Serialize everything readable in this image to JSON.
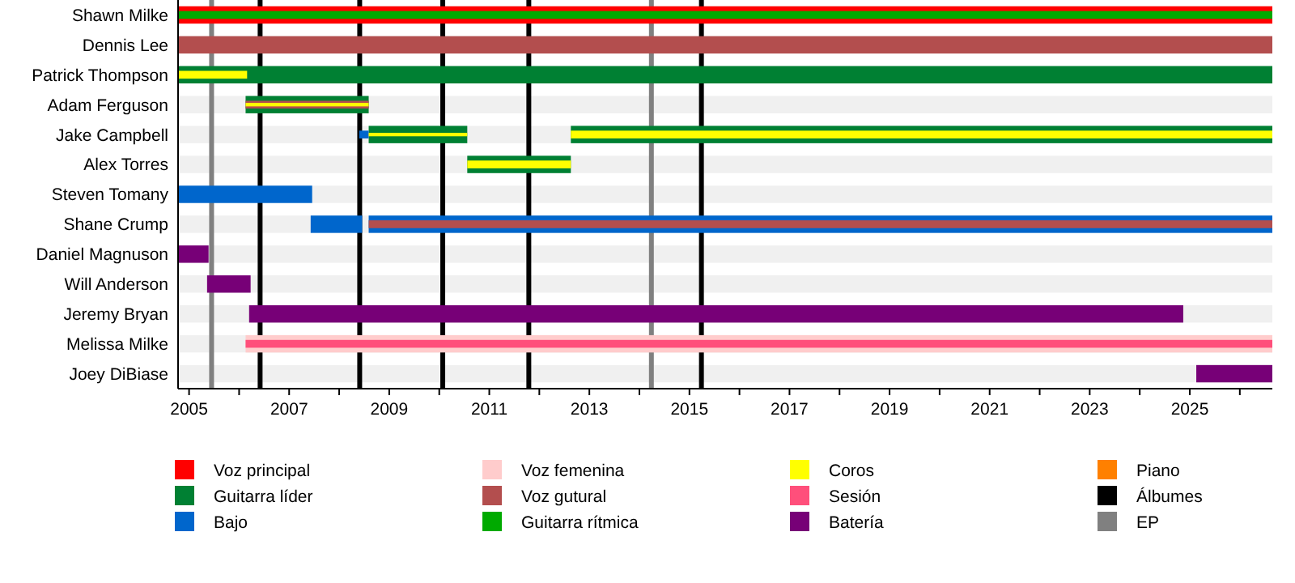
{
  "chart_data": {
    "type": "bar",
    "orientation": "horizontal",
    "legend": "bottom",
    "categories": [
      "Shawn Milke",
      "Dennis Lee",
      "Patrick Thompson",
      "Adam Ferguson",
      "Jake Campbell",
      "Alex Torres",
      "Steven Tomany",
      "Shane Crump",
      "Daniel Magnuson",
      "Will Anderson",
      "Jeremy Bryan",
      "Melissa Milke",
      "Joey DiBiase"
    ],
    "xlim": [
      2004.78,
      2026.65
    ],
    "xticks": [
      2005,
      {
        "value": 2006,
        "label": null
      },
      2007,
      {
        "value": 2008,
        "label": null
      },
      2009,
      {
        "value": 2010,
        "label": null
      },
      2011,
      {
        "value": 2012,
        "label": null
      },
      2013,
      {
        "value": 2014,
        "label": null
      },
      2015,
      {
        "value": 2016,
        "label": null
      },
      2017,
      {
        "value": 2018,
        "label": null
      },
      2019,
      {
        "value": 2020,
        "label": null
      },
      2021,
      {
        "value": 2022,
        "label": null
      },
      2023,
      {
        "value": 2024,
        "label": null
      },
      2025,
      {
        "value": 2026,
        "label": null
      }
    ],
    "series": [
      {
        "name": "Voz principal",
        "color": "#ff0000",
        "base": [
          2004.78,
          null,
          null,
          null,
          null,
          null,
          null,
          null,
          null,
          null,
          null,
          null,
          null
        ],
        "values": [
          21.87,
          null,
          null,
          null,
          null,
          null,
          null,
          null,
          null,
          null,
          null,
          null,
          null
        ]
      },
      {
        "name": "Guitarra líder",
        "color": "#008033",
        "base": [
          null,
          null,
          2004.78,
          2006.13,
          2008.59,
          2010.56,
          null,
          null,
          null,
          null,
          null,
          null,
          null
        ],
        "values": [
          null,
          null,
          21.87,
          2.46,
          1.97,
          2.07,
          null,
          null,
          null,
          null,
          null,
          null,
          null
        ]
      },
      {
        "color": "#008033",
        "base": [
          null,
          null,
          null,
          null,
          2012.63,
          null,
          null,
          null,
          null,
          null,
          null,
          null,
          null
        ],
        "values": [
          null,
          null,
          null,
          null,
          14.02,
          null,
          null,
          null,
          null,
          null,
          null,
          null,
          null
        ]
      },
      {
        "name": "Bajo",
        "color": "#0066cc",
        "base": [
          null,
          null,
          null,
          null,
          2008.4,
          null,
          2004.78,
          2007.43,
          null,
          null,
          null,
          null,
          null
        ],
        "values": [
          null,
          null,
          null,
          null,
          0.19,
          null,
          2.68,
          1.03,
          null,
          null,
          null,
          null,
          null
        ]
      },
      {
        "color": "#0066cc",
        "base": [
          null,
          null,
          null,
          null,
          null,
          null,
          null,
          2008.59,
          null,
          null,
          null,
          null,
          null
        ],
        "values": [
          null,
          null,
          null,
          null,
          null,
          null,
          null,
          18.06,
          null,
          null,
          null,
          null,
          null
        ]
      },
      {
        "name": "Voz femenina",
        "color": "#ffcccc",
        "base": [
          null,
          null,
          null,
          null,
          null,
          null,
          null,
          null,
          null,
          null,
          null,
          2006.13,
          null
        ],
        "values": [
          null,
          null,
          null,
          null,
          null,
          null,
          null,
          null,
          null,
          null,
          null,
          20.52,
          null
        ]
      },
      {
        "name": "Voz gutural",
        "color": "#b34e4e",
        "base": [
          null,
          2004.78,
          null,
          2006.13,
          null,
          null,
          null,
          2008.59,
          null,
          null,
          null,
          null,
          null
        ],
        "values": [
          null,
          21.87,
          null,
          2.46,
          null,
          null,
          null,
          18.06,
          null,
          null,
          null,
          null,
          null
        ]
      },
      {
        "name": "Guitarra rítmica",
        "color": "#00aa00",
        "base": [
          2004.78,
          null,
          null,
          null,
          null,
          null,
          null,
          null,
          null,
          null,
          null,
          null,
          null
        ],
        "values": [
          21.87,
          null,
          null,
          null,
          null,
          null,
          null,
          null,
          null,
          null,
          null,
          null,
          null
        ]
      },
      {
        "name": "Coros",
        "color": "#ffff00",
        "base": [
          null,
          null,
          2004.78,
          2006.13,
          2008.59,
          2010.56,
          null,
          null,
          null,
          null,
          null,
          null,
          null
        ],
        "values": [
          null,
          null,
          1.38,
          2.46,
          1.97,
          2.07,
          null,
          null,
          null,
          null,
          null,
          null,
          null
        ]
      },
      {
        "color": "#ffff00",
        "base": [
          null,
          null,
          null,
          null,
          2012.63,
          null,
          null,
          null,
          null,
          null,
          null,
          null,
          null
        ],
        "values": [
          null,
          null,
          null,
          null,
          14.02,
          null,
          null,
          null,
          null,
          null,
          null,
          null,
          null
        ]
      },
      {
        "name": "Sesión",
        "color": "#ff4f7b",
        "base": [
          null,
          null,
          null,
          null,
          null,
          null,
          null,
          null,
          null,
          null,
          null,
          2006.13,
          null
        ],
        "values": [
          null,
          null,
          null,
          null,
          null,
          null,
          null,
          null,
          null,
          null,
          null,
          20.52,
          null
        ]
      },
      {
        "name": "Batería",
        "color": "#770077",
        "base": [
          null,
          null,
          null,
          null,
          null,
          null,
          null,
          null,
          2004.78,
          2005.36,
          2006.2,
          null,
          2025.13
        ],
        "values": [
          null,
          null,
          null,
          null,
          null,
          null,
          null,
          null,
          0.61,
          0.87,
          18.67,
          null,
          1.52
        ]
      },
      {
        "name": "Piano",
        "color": "#ff8000",
        "base": [
          null,
          null,
          null,
          null,
          null,
          null,
          null,
          null,
          null,
          null,
          null,
          null,
          null
        ],
        "values": [
          null,
          null,
          null,
          null,
          null,
          null,
          null,
          null,
          null,
          null,
          null,
          null,
          null
        ]
      }
    ],
    "ref_lines": [
      {
        "axis": "x",
        "value": 2006.42,
        "label": "Álbumes",
        "color": "#000000"
      },
      {
        "axis": "x",
        "value": 2008.41,
        "color": "#000000"
      },
      {
        "axis": "x",
        "value": 2010.07,
        "color": "#000000"
      },
      {
        "axis": "x",
        "value": 2011.79,
        "color": "#000000"
      },
      {
        "axis": "x",
        "value": 2015.24,
        "color": "#000000"
      },
      {
        "axis": "x",
        "value": 2005.45,
        "label": "EP",
        "color": "#808080"
      },
      {
        "axis": "x",
        "value": 2014.24,
        "color": "#808080"
      }
    ]
  }
}
